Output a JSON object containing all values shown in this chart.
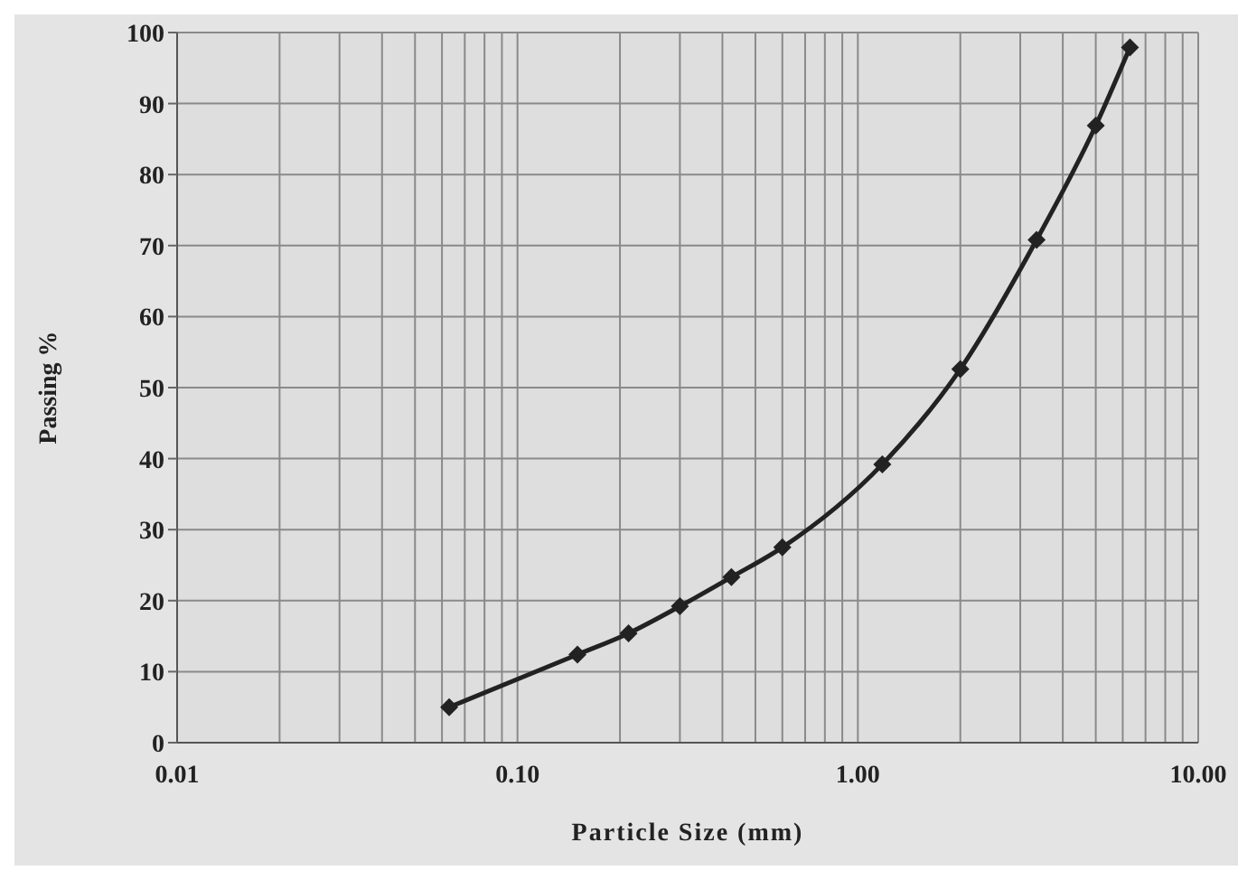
{
  "chart_data": {
    "type": "line",
    "xlabel": "Particle Size (mm)",
    "ylabel": "Passing %",
    "log": "x",
    "x": [
      0.063,
      0.15,
      0.212,
      0.3,
      0.425,
      0.6,
      1.18,
      2,
      3.35,
      5,
      6.3
    ],
    "series": [
      {
        "color": "#222222",
        "values": [
          5,
          12.4,
          15.4,
          19.2,
          23.3,
          27.5,
          39.2,
          52.6,
          70.8,
          86.9,
          97.9
        ]
      }
    ],
    "xlim": [
      0.01,
      10
    ],
    "xticks": [
      0.01,
      {
        "value": 0.02,
        "label": null
      },
      {
        "value": 0.03,
        "label": null
      },
      {
        "value": 0.04,
        "label": null
      },
      {
        "value": 0.05,
        "label": null
      },
      {
        "value": 0.06,
        "label": null
      },
      {
        "value": 0.07,
        "label": null
      },
      {
        "value": 0.08,
        "label": null
      },
      {
        "value": 0.09,
        "label": null
      },
      {
        "value": 0.1,
        "label": "0.10"
      },
      {
        "value": 0.2,
        "label": null
      },
      {
        "value": 0.3,
        "label": null
      },
      {
        "value": 0.4,
        "label": null
      },
      {
        "value": 0.5,
        "label": null
      },
      {
        "value": 0.6,
        "label": null
      },
      {
        "value": 0.7,
        "label": null
      },
      {
        "value": 0.8,
        "label": null
      },
      {
        "value": 0.9,
        "label": null
      },
      {
        "value": 1,
        "label": "1.00"
      },
      {
        "value": 2,
        "label": null
      },
      {
        "value": 3,
        "label": null
      },
      {
        "value": 4,
        "label": null
      },
      {
        "value": 5,
        "label": null
      },
      {
        "value": 6,
        "label": null
      },
      {
        "value": 7,
        "label": null
      },
      {
        "value": 8,
        "label": null
      },
      {
        "value": 9,
        "label": null
      },
      {
        "value": 10,
        "label": "10.00"
      }
    ],
    "ylim": [
      0,
      100
    ],
    "yticks": [
      0,
      10,
      20,
      30,
      40,
      50,
      60,
      70,
      80,
      90,
      100
    ],
    "grid": true,
    "marker": "diamond",
    "line_style": "solid",
    "legend": false
  }
}
